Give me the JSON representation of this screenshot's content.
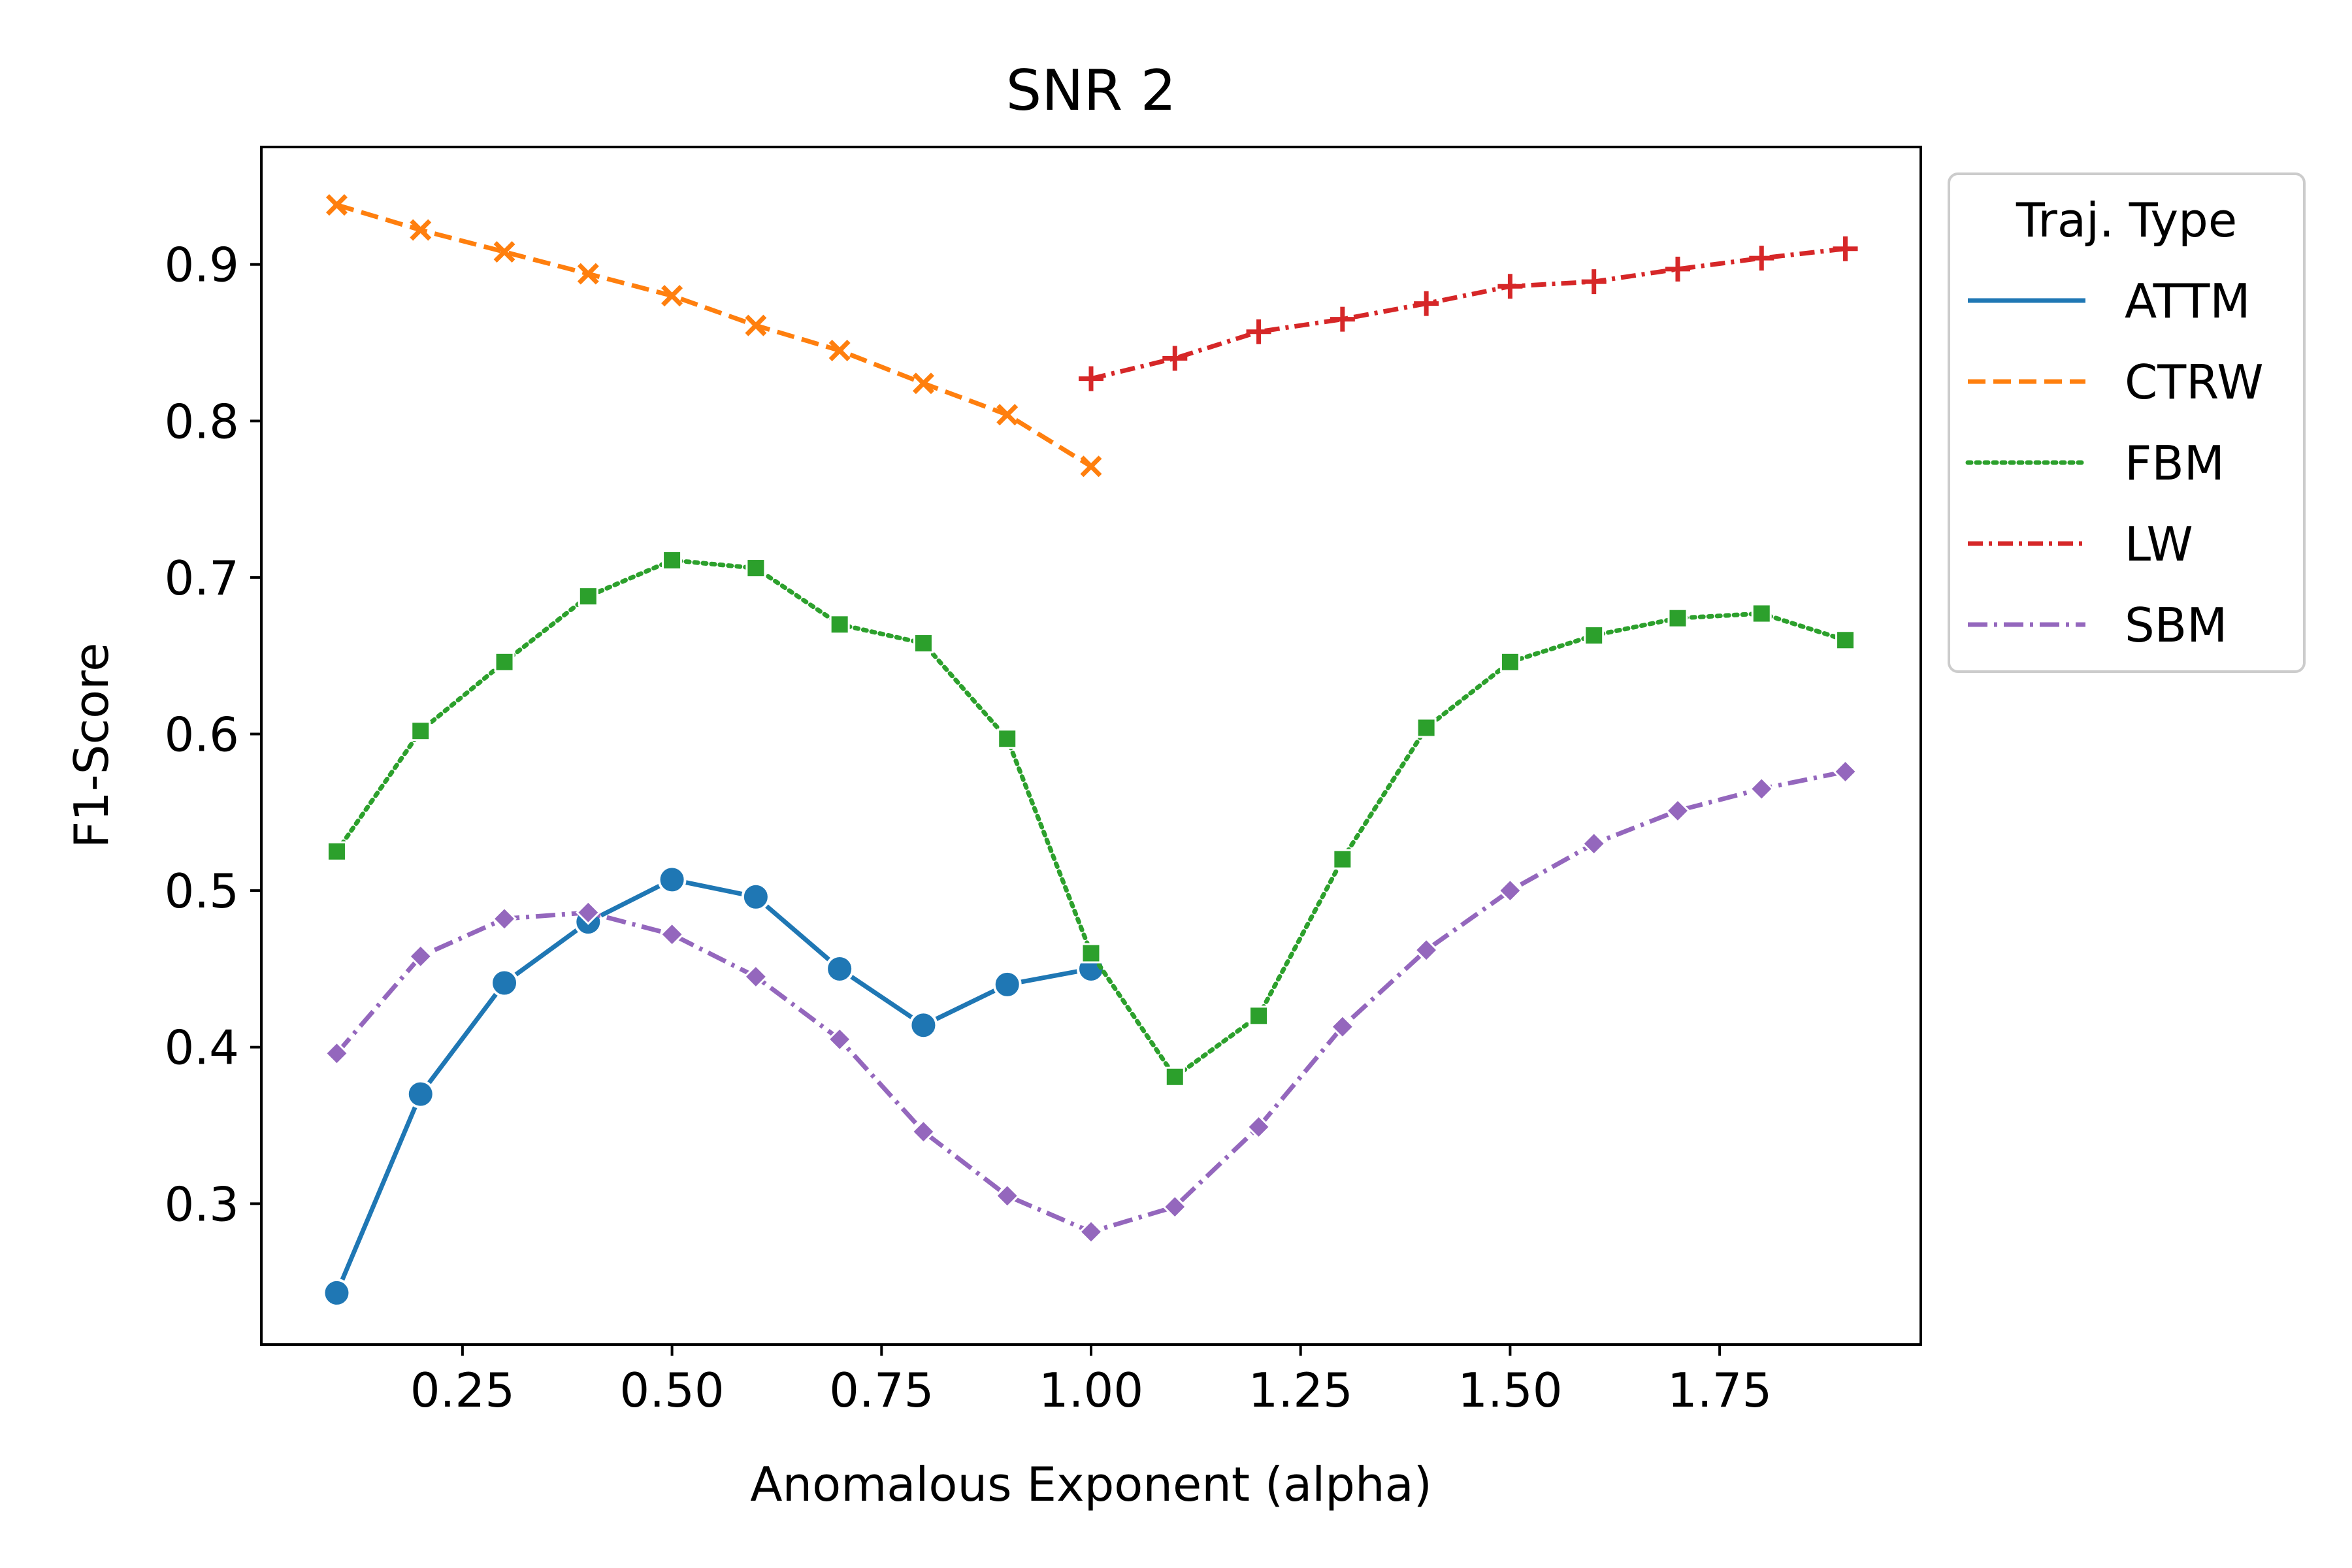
{
  "chart_data": {
    "type": "line",
    "title": "SNR 2",
    "xlabel": "Anomalous Exponent (alpha)",
    "ylabel": "F1-Score",
    "xlim": [
      0.01,
      1.99
    ],
    "ylim": [
      0.21,
      0.975
    ],
    "xticks": [
      0.25,
      0.5,
      0.75,
      1.0,
      1.25,
      1.5,
      1.75
    ],
    "xtick_labels": [
      "0.25",
      "0.50",
      "0.75",
      "1.00",
      "1.25",
      "1.50",
      "1.75"
    ],
    "yticks": [
      0.3,
      0.4,
      0.5,
      0.6,
      0.7,
      0.8,
      0.9
    ],
    "ytick_labels": [
      "0.3",
      "0.4",
      "0.5",
      "0.6",
      "0.7",
      "0.8",
      "0.9"
    ],
    "grid": false,
    "legend": {
      "title": "Traj. Type",
      "placement": "outside upper right"
    },
    "series": [
      {
        "name": "ATTM",
        "color": "#1f77b4",
        "linestyle": "solid",
        "marker": "circle",
        "x": [
          0.1,
          0.2,
          0.3,
          0.4,
          0.5,
          0.6,
          0.7,
          0.8,
          0.9,
          1.0
        ],
        "y": [
          0.243,
          0.37,
          0.441,
          0.48,
          0.507,
          0.496,
          0.45,
          0.414,
          0.44,
          0.45
        ]
      },
      {
        "name": "CTRW",
        "color": "#ff7f0e",
        "linestyle": "dashed",
        "marker": "x",
        "x": [
          0.1,
          0.2,
          0.3,
          0.4,
          0.5,
          0.6,
          0.7,
          0.8,
          0.9,
          1.0
        ],
        "y": [
          0.938,
          0.922,
          0.908,
          0.894,
          0.88,
          0.861,
          0.845,
          0.824,
          0.804,
          0.771
        ]
      },
      {
        "name": "FBM",
        "color": "#2ca02c",
        "linestyle": "dotted",
        "marker": "square",
        "x": [
          0.1,
          0.2,
          0.3,
          0.4,
          0.5,
          0.6,
          0.7,
          0.8,
          0.9,
          1.0,
          1.1,
          1.2,
          1.3,
          1.4,
          1.5,
          1.6,
          1.7,
          1.8,
          1.9
        ],
        "y": [
          0.525,
          0.602,
          0.646,
          0.688,
          0.711,
          0.706,
          0.67,
          0.658,
          0.597,
          0.46,
          0.381,
          0.42,
          0.52,
          0.604,
          0.646,
          0.663,
          0.674,
          0.677,
          0.66
        ]
      },
      {
        "name": "LW",
        "color": "#d62728",
        "linestyle": "dashdotdot",
        "marker": "plus",
        "x": [
          1.0,
          1.1,
          1.2,
          1.3,
          1.4,
          1.5,
          1.6,
          1.7,
          1.8,
          1.9
        ],
        "y": [
          0.827,
          0.84,
          0.857,
          0.865,
          0.875,
          0.886,
          0.889,
          0.897,
          0.904,
          0.91
        ]
      },
      {
        "name": "SBM",
        "color": "#9467bd",
        "linestyle": "dashdot",
        "marker": "diamond",
        "x": [
          0.1,
          0.2,
          0.3,
          0.4,
          0.5,
          0.6,
          0.7,
          0.8,
          0.9,
          1.0,
          1.1,
          1.2,
          1.3,
          1.4,
          1.5,
          1.6,
          1.7,
          1.8,
          1.9
        ],
        "y": [
          0.396,
          0.458,
          0.482,
          0.486,
          0.472,
          0.445,
          0.405,
          0.346,
          0.305,
          0.282,
          0.298,
          0.349,
          0.413,
          0.462,
          0.5,
          0.53,
          0.551,
          0.565,
          0.576
        ]
      }
    ]
  }
}
